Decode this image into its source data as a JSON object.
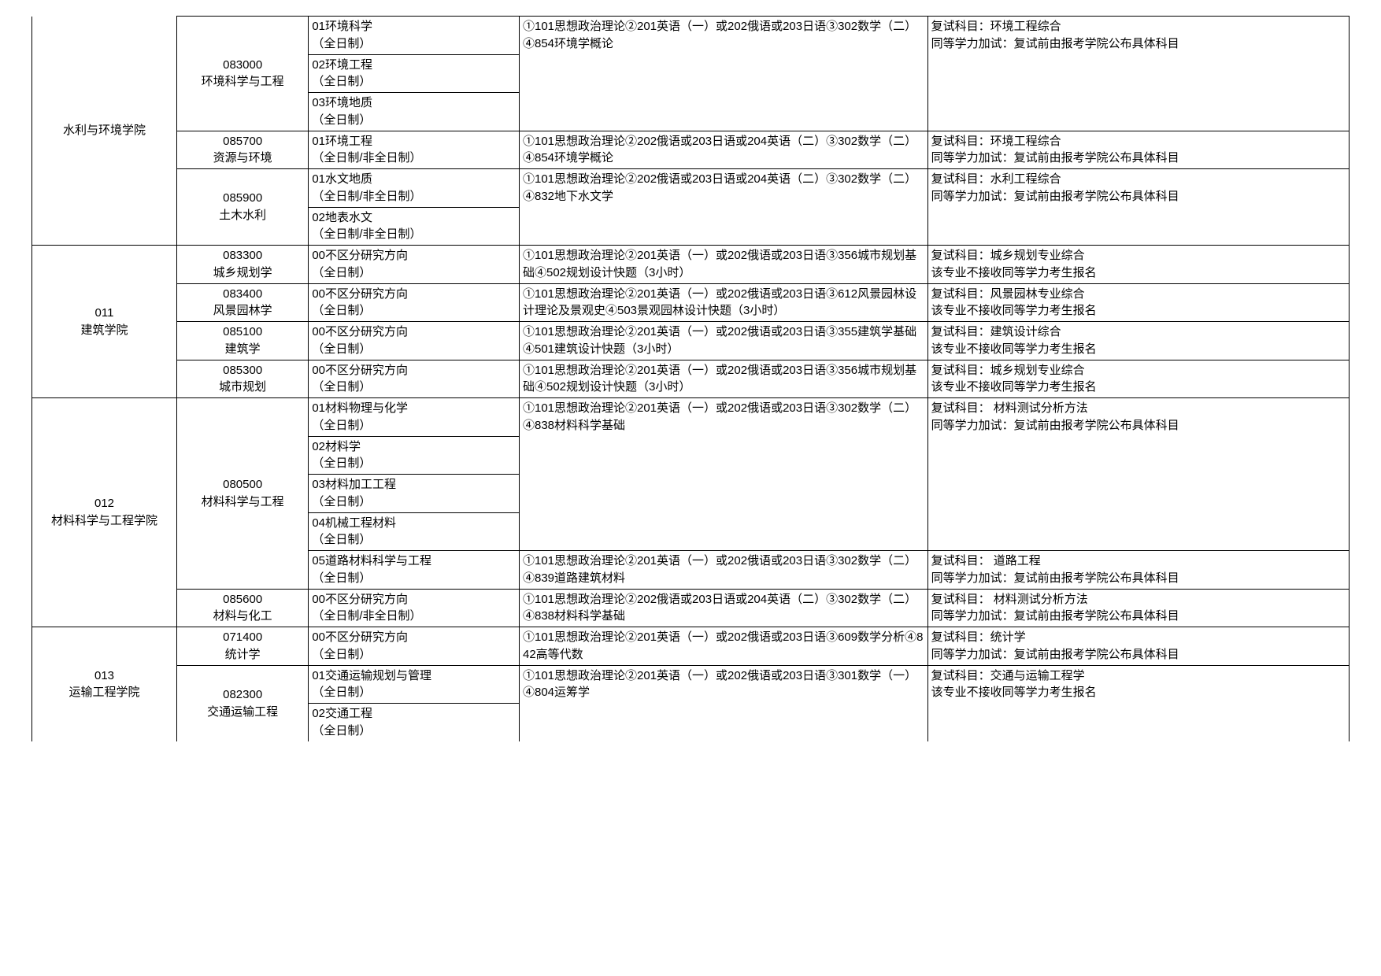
{
  "rows": [
    {
      "school": "水利与环境学院",
      "schoolRowspan": 3,
      "schoolTopBorder": false,
      "major": "083000\n环境科学与工程",
      "directions": [
        "01环境科学\n（全日制）",
        "02环境工程\n（全日制）",
        "03环境地质\n（全日制）"
      ],
      "exam": "①101思想政治理论②201英语（一）或202俄语或203日语③302数学（二）④854环境学概论",
      "note": "复试科目：环境工程综合\n同等学力加试：复试前由报考学院公布具体科目"
    },
    {
      "major": "085700\n资源与环境",
      "directions": [
        "01环境工程\n（全日制/非全日制）"
      ],
      "exam": "①101思想政治理论②202俄语或203日语或204英语（二）③302数学（二）④854环境学概论",
      "note": "复试科目：环境工程综合\n同等学力加试：复试前由报考学院公布具体科目"
    },
    {
      "major": "085900\n土木水利",
      "directions": [
        "01水文地质\n（全日制/非全日制）",
        "02地表水文\n（全日制/非全日制）"
      ],
      "exam": "①101思想政治理论②202俄语或203日语或204英语（二）③302数学（二）④832地下水文学",
      "note": "复试科目：水利工程综合\n同等学力加试：复试前由报考学院公布具体科目"
    },
    {
      "school": "011\n建筑学院",
      "schoolRowspan": 4,
      "major": "083300\n城乡规划学",
      "directions": [
        "00不区分研究方向\n（全日制）"
      ],
      "exam": "①101思想政治理论②201英语（一）或202俄语或203日语③356城市规划基础④502规划设计快题（3小时）",
      "note": "复试科目：城乡规划专业综合\n该专业不接收同等学力考生报名"
    },
    {
      "major": "083400\n风景园林学",
      "directions": [
        "00不区分研究方向\n（全日制）"
      ],
      "exam": "①101思想政治理论②201英语（一）或202俄语或203日语③612风景园林设计理论及景观史④503景观园林设计快题（3小时）",
      "note": "复试科目：风景园林专业综合\n该专业不接收同等学力考生报名"
    },
    {
      "major": "085100\n建筑学",
      "directions": [
        "00不区分研究方向\n（全日制）"
      ],
      "exam": "①101思想政治理论②201英语（一）或202俄语或203日语③355建筑学基础④501建筑设计快题（3小时）",
      "note": "复试科目：建筑设计综合\n该专业不接收同等学力考生报名"
    },
    {
      "major": "085300\n城市规划",
      "directions": [
        "00不区分研究方向\n（全日制）"
      ],
      "exam": "①101思想政治理论②201英语（一）或202俄语或203日语③356城市规划基础④502规划设计快题（3小时）",
      "note": "复试科目：城乡规划专业综合\n该专业不接收同等学力考生报名"
    },
    {
      "school": "012\n材料科学与工程学院",
      "schoolRowspan": 3,
      "major": "080500\n材料科学与工程",
      "majorRowspan": 2,
      "directions": [
        "01材料物理与化学\n（全日制）",
        "02材料学\n（全日制）",
        "03材料加工工程\n（全日制）",
        "04机械工程材料\n（全日制）"
      ],
      "exam": "①101思想政治理论②201英语（一）或202俄语或203日语③302数学（二）④838材料科学基础",
      "note": "复试科目： 材料测试分析方法\n同等学力加试：复试前由报考学院公布具体科目"
    },
    {
      "directions": [
        "05道路材料科学与工程\n（全日制）"
      ],
      "exam": "①101思想政治理论②201英语（一）或202俄语或203日语③302数学（二）④839道路建筑材料",
      "note": "复试科目： 道路工程\n同等学力加试：复试前由报考学院公布具体科目"
    },
    {
      "major": "085600\n材料与化工",
      "directions": [
        "00不区分研究方向\n（全日制/非全日制）"
      ],
      "exam": "①101思想政治理论②202俄语或203日语或204英语（二）③302数学（二）④838材料科学基础",
      "note": "复试科目： 材料测试分析方法\n同等学力加试：复试前由报考学院公布具体科目"
    },
    {
      "school": "013\n运输工程学院",
      "schoolRowspan": 2,
      "schoolBottomBorder": false,
      "major": "071400\n统计学",
      "directions": [
        "00不区分研究方向\n（全日制）"
      ],
      "exam": "①101思想政治理论②201英语（一）或202俄语或203日语③609数学分析④842高等代数",
      "note": "复试科目：统计学\n同等学力加试：复试前由报考学院公布具体科目"
    },
    {
      "major": "082300\n交通运输工程",
      "majorBottomBorder": false,
      "directions": [
        "01交通运输规划与管理\n（全日制）",
        "02交通工程\n（全日制）"
      ],
      "dirBottomBorder": false,
      "exam": "①101思想政治理论②201英语（一）或202俄语或203日语③301数学（一）④804运筹学",
      "examBottomBorder": false,
      "note": "复试科目：交通与运输工程学\n该专业不接收同等学力考生报名",
      "noteBottomBorder": false
    }
  ]
}
